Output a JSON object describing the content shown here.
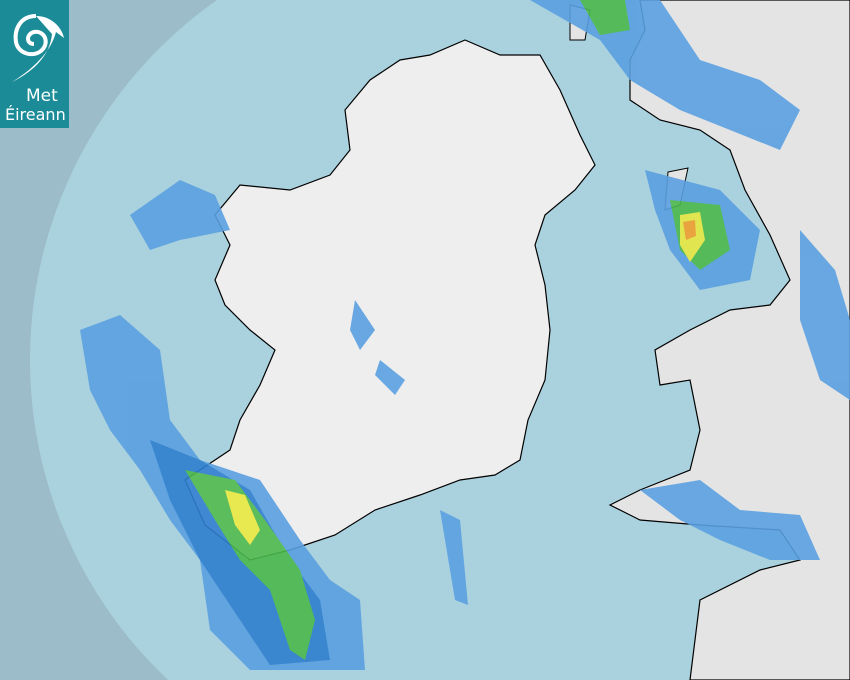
{
  "brand": {
    "line1": "Met",
    "line2": "Éireann",
    "logo_icon": "swirl-logo-icon",
    "color": "#1b8c97"
  },
  "map": {
    "type": "precipitation radar",
    "colors": {
      "outside_coverage": "#9bbcc8",
      "sea": "#aad2de",
      "land": "#eeeeee",
      "light_rain": "#5aa0e0",
      "moderate_rain": "#2e7fcf",
      "heavy": "#4cb84c",
      "very_heavy": "#e8e840",
      "intense": "#f0a030"
    }
  }
}
